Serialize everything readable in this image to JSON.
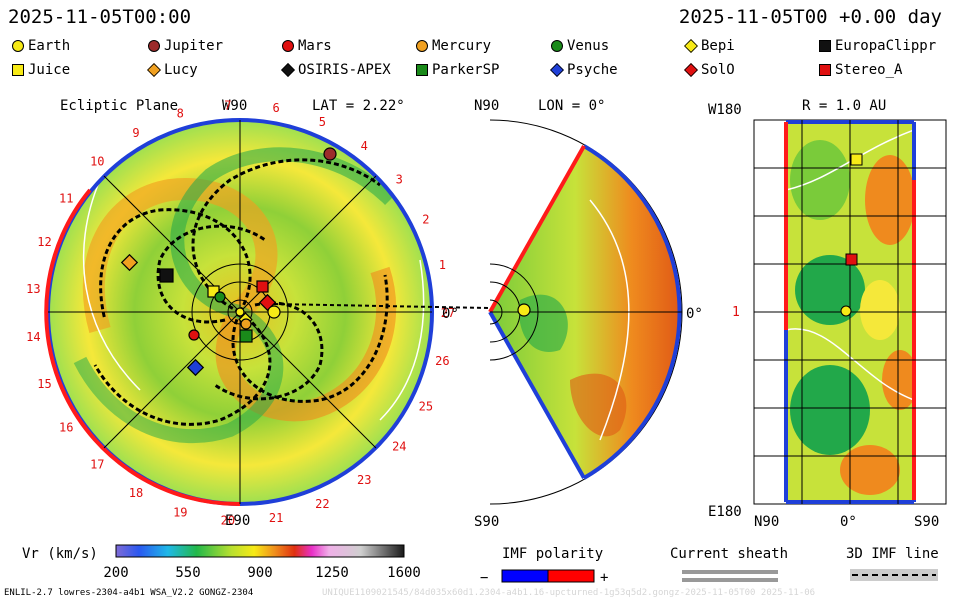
{
  "header": {
    "left_time": "2025-11-05T00:00",
    "right_time": "2025-11-05T00 +0.00 day"
  },
  "legend": [
    {
      "label": "Earth",
      "shape": "circle",
      "color": "#f7ea16"
    },
    {
      "label": "Jupiter",
      "shape": "circle",
      "color": "#9c2b2b"
    },
    {
      "label": "Mars",
      "shape": "circle",
      "color": "#e01010"
    },
    {
      "label": "Mercury",
      "shape": "circle",
      "color": "#f0a020"
    },
    {
      "label": "Venus",
      "shape": "circle",
      "color": "#1a8a1a"
    },
    {
      "label": "Bepi",
      "shape": "diamond",
      "color": "#f7ea16"
    },
    {
      "label": "EuropaClippr",
      "shape": "square",
      "color": "#111111"
    },
    {
      "label": "Juice",
      "shape": "square",
      "color": "#f7ea16"
    },
    {
      "label": "Lucy",
      "shape": "diamond",
      "color": "#f0a020"
    },
    {
      "label": "OSIRIS-APEX",
      "shape": "diamond",
      "color": "#111111"
    },
    {
      "label": "ParkerSP",
      "shape": "square",
      "color": "#1a8a1a"
    },
    {
      "label": "Psyche",
      "shape": "diamond",
      "color": "#1f3fd8"
    },
    {
      "label": "SolO",
      "shape": "diamond",
      "color": "#e01010"
    },
    {
      "label": "Stereo_A",
      "shape": "square",
      "color": "#e01010"
    }
  ],
  "chart_data": [
    {
      "type": "heatmap",
      "panel": "ecliptic",
      "title": "Ecliptic Plane",
      "lat_label": "LAT = 2.22°",
      "top_label": "W90",
      "bottom_label": "E90",
      "right_label": "0°",
      "sector_labels": [
        "1",
        "2",
        "3",
        "4",
        "5",
        "6",
        "7",
        "8",
        "9",
        "10",
        "11",
        "12",
        "13",
        "14",
        "15",
        "16",
        "17",
        "18",
        "19",
        "20",
        "21",
        "22",
        "23",
        "24",
        "25",
        "26",
        "27"
      ],
      "variable": "Vr (km/s)"
    },
    {
      "type": "heatmap",
      "panel": "meridional",
      "lon_label": "LON = 0°",
      "top_label": "N90",
      "bottom_label": "S90",
      "right_label": "0°"
    },
    {
      "type": "heatmap",
      "panel": "sphere",
      "r_label": "R = 1.0 AU",
      "top_left": "W180",
      "mid_left": "1",
      "bottom_left": "E180",
      "x_labels": [
        "N90",
        "0°",
        "S90"
      ]
    },
    {
      "type": "colorbar",
      "label": "Vr (km/s)",
      "ticks": [
        200,
        550,
        900,
        1250,
        1600
      ],
      "range": [
        200,
        1600
      ]
    }
  ],
  "imf": {
    "label": "IMF polarity",
    "minus": "−",
    "plus": "+",
    "neg_color": "#0000ff",
    "pos_color": "#ff0000"
  },
  "sheath": {
    "label": "Current sheath"
  },
  "imfline": {
    "label": "3D IMF line"
  },
  "footer": {
    "left": "ENLIL-2.7 lowres-2304-a4b1 WSA_V2.2 GONGZ-2304",
    "right": "UNIQUE1109021545/84d035x60d1.2304-a4b1.16-upcturned-1g53q5d2.gongz-2025-11-05T00 2025-11-06"
  }
}
